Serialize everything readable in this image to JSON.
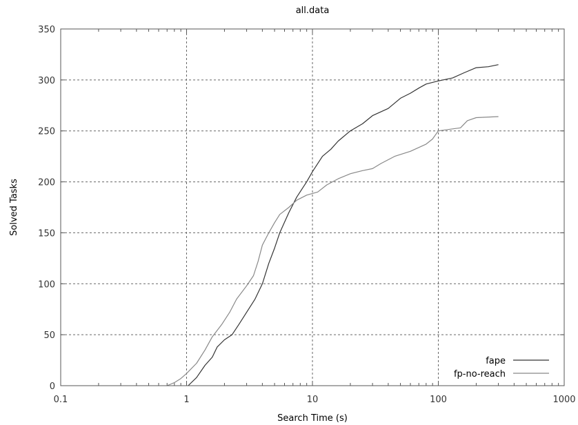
{
  "chart_data": {
    "type": "line",
    "title": "all.data",
    "xlabel": "Search Time (s)",
    "ylabel": "Solved Tasks",
    "xscale": "log",
    "xlim": [
      0.1,
      1000
    ],
    "ylim": [
      0,
      350
    ],
    "grid": true,
    "legend_position": "bottom-right",
    "x_ticks": [
      {
        "value": 0.1,
        "label": "0.1"
      },
      {
        "value": 1,
        "label": "1"
      },
      {
        "value": 10,
        "label": "10"
      },
      {
        "value": 100,
        "label": "100"
      },
      {
        "value": 1000,
        "label": "1000"
      }
    ],
    "y_ticks": [
      {
        "value": 0,
        "label": "0"
      },
      {
        "value": 50,
        "label": "50"
      },
      {
        "value": 100,
        "label": "100"
      },
      {
        "value": 150,
        "label": "150"
      },
      {
        "value": 200,
        "label": "200"
      },
      {
        "value": 250,
        "label": "250"
      },
      {
        "value": 300,
        "label": "300"
      },
      {
        "value": 350,
        "label": "350"
      }
    ],
    "series": [
      {
        "name": "fape",
        "color": "#333333",
        "points": [
          [
            1.03,
            0
          ],
          [
            1.2,
            8
          ],
          [
            1.4,
            20
          ],
          [
            1.6,
            28
          ],
          [
            1.75,
            38
          ],
          [
            2.0,
            45
          ],
          [
            2.3,
            50
          ],
          [
            2.6,
            60
          ],
          [
            3.0,
            72
          ],
          [
            3.5,
            85
          ],
          [
            4.0,
            100
          ],
          [
            4.5,
            120
          ],
          [
            5.0,
            135
          ],
          [
            5.5,
            150
          ],
          [
            6.5,
            170
          ],
          [
            7.5,
            185
          ],
          [
            9.0,
            200
          ],
          [
            10,
            210
          ],
          [
            12,
            225
          ],
          [
            14,
            232
          ],
          [
            16,
            240
          ],
          [
            20,
            250
          ],
          [
            25,
            257
          ],
          [
            30,
            265
          ],
          [
            40,
            272
          ],
          [
            50,
            282
          ],
          [
            60,
            287
          ],
          [
            70,
            292
          ],
          [
            80,
            296
          ],
          [
            100,
            299
          ],
          [
            130,
            302
          ],
          [
            160,
            307
          ],
          [
            200,
            312
          ],
          [
            250,
            313
          ],
          [
            300,
            315
          ]
        ]
      },
      {
        "name": "fp-no-reach",
        "color": "#888888",
        "points": [
          [
            0.7,
            0
          ],
          [
            0.8,
            3
          ],
          [
            0.9,
            7
          ],
          [
            1.0,
            12
          ],
          [
            1.2,
            22
          ],
          [
            1.4,
            35
          ],
          [
            1.6,
            48
          ],
          [
            1.9,
            60
          ],
          [
            2.2,
            72
          ],
          [
            2.5,
            85
          ],
          [
            3.0,
            98
          ],
          [
            3.4,
            108
          ],
          [
            3.7,
            122
          ],
          [
            4.0,
            138
          ],
          [
            4.5,
            150
          ],
          [
            5.0,
            160
          ],
          [
            5.5,
            168
          ],
          [
            6.5,
            175
          ],
          [
            7.5,
            182
          ],
          [
            9.0,
            187
          ],
          [
            11,
            190
          ],
          [
            13,
            197
          ],
          [
            16,
            203
          ],
          [
            20,
            208
          ],
          [
            25,
            211
          ],
          [
            30,
            213
          ],
          [
            35,
            218
          ],
          [
            45,
            225
          ],
          [
            60,
            230
          ],
          [
            80,
            237
          ],
          [
            90,
            242
          ],
          [
            100,
            250
          ],
          [
            130,
            252
          ],
          [
            150,
            253
          ],
          [
            170,
            260
          ],
          [
            200,
            263
          ],
          [
            300,
            264
          ]
        ]
      }
    ]
  }
}
